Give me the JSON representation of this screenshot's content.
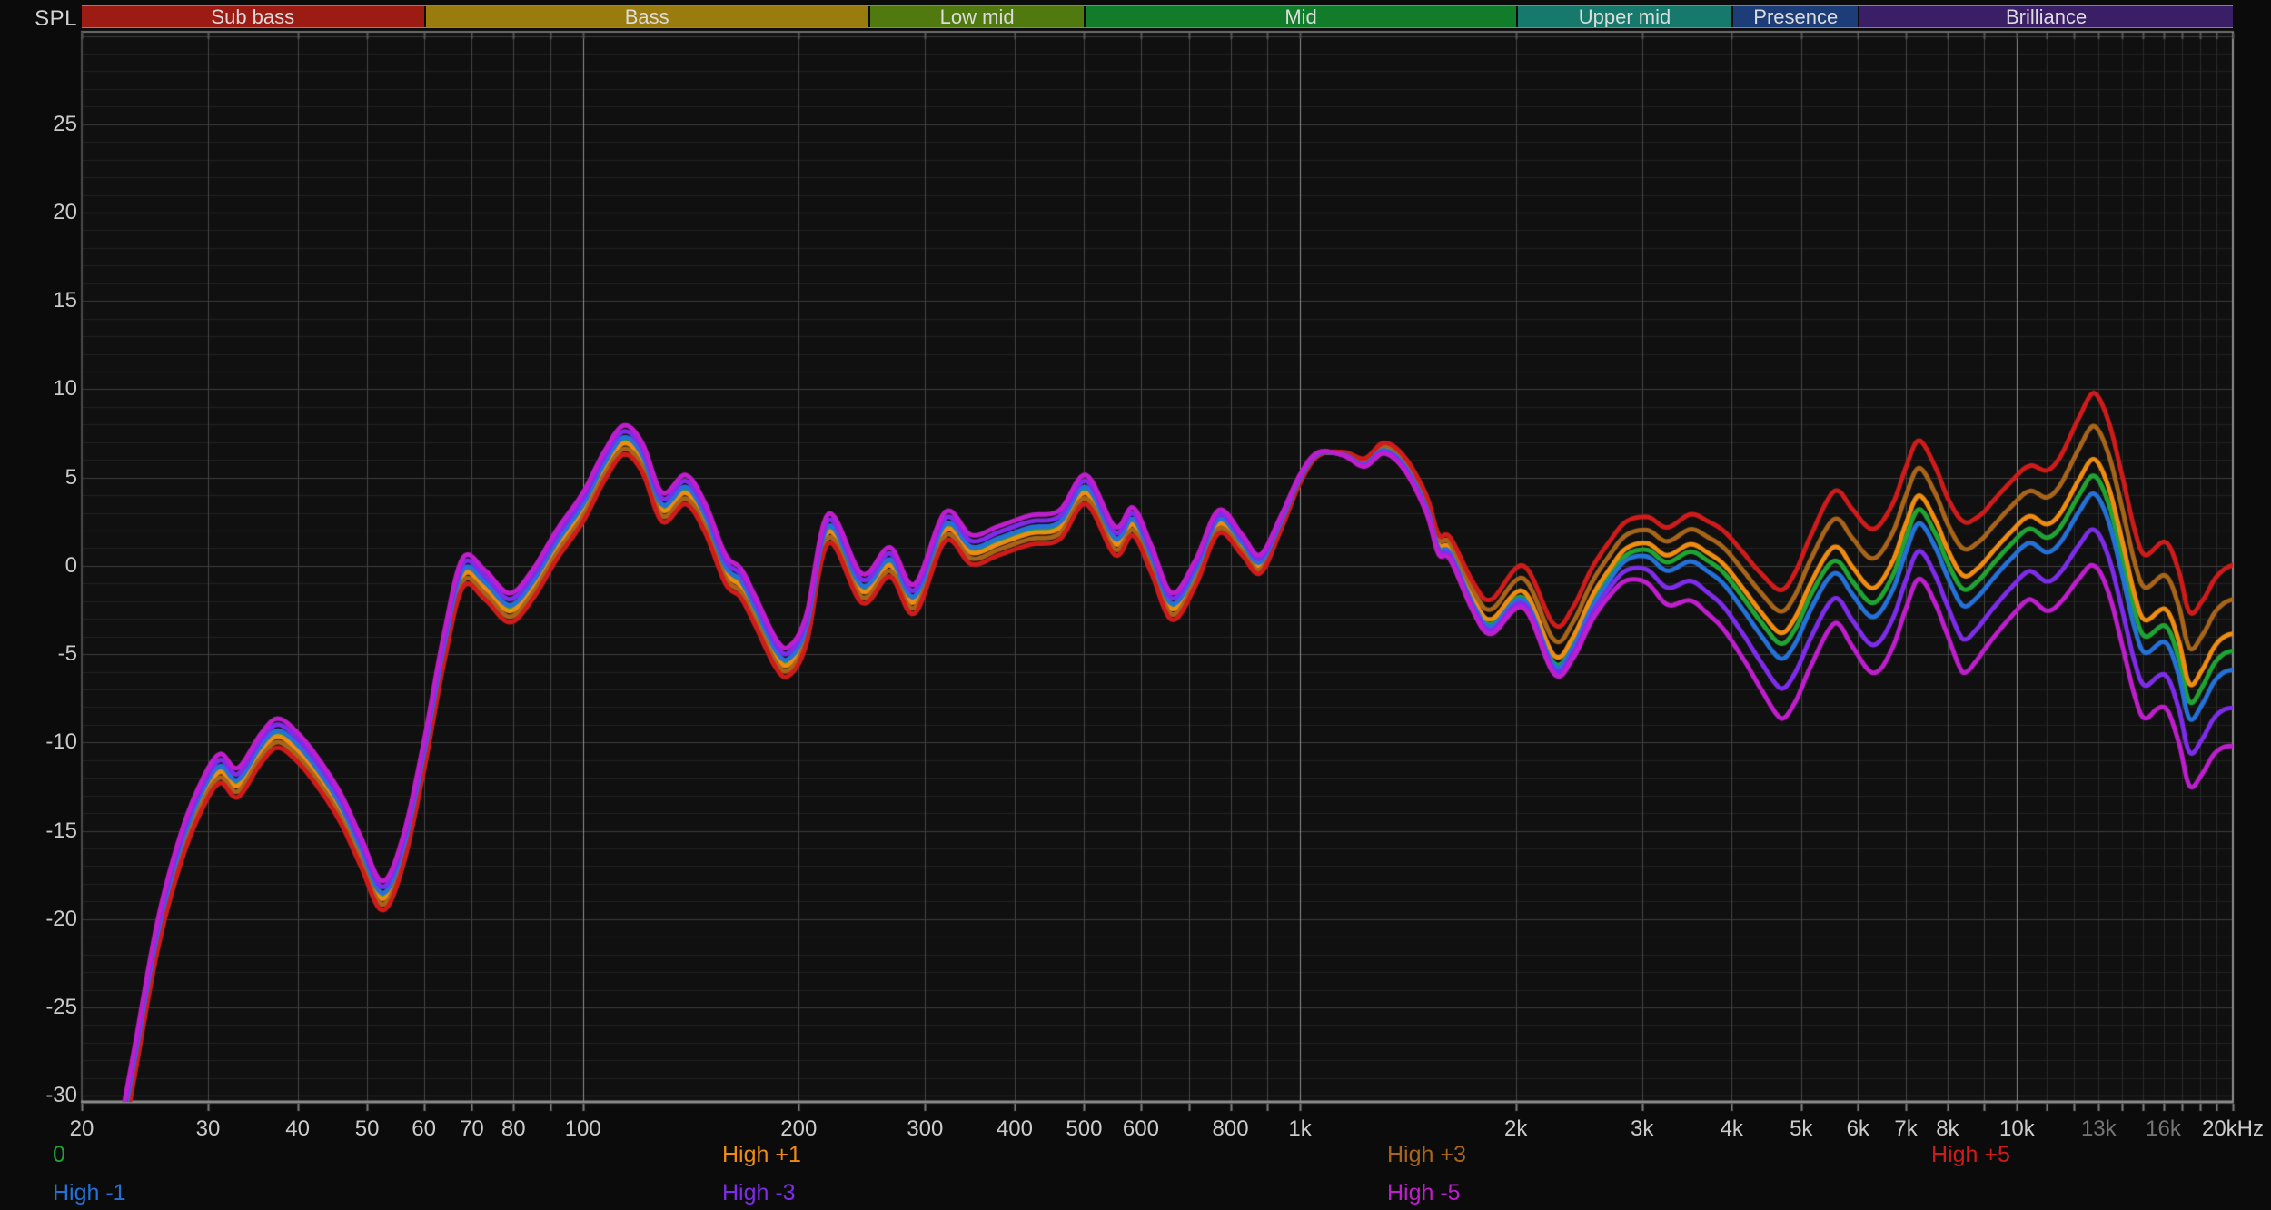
{
  "header": {
    "y_axis_title": "SPL"
  },
  "bands": [
    {
      "label": "Sub bass",
      "color": "#9c1b13",
      "f_start": 20,
      "f_end": 60
    },
    {
      "label": "Bass",
      "color": "#9a7b0e",
      "f_start": 60,
      "f_end": 250
    },
    {
      "label": "Low mid",
      "color": "#507a10",
      "f_start": 250,
      "f_end": 500
    },
    {
      "label": "Mid",
      "color": "#117c29",
      "f_start": 500,
      "f_end": 2000
    },
    {
      "label": "Upper mid",
      "color": "#17796b",
      "f_start": 2000,
      "f_end": 4000
    },
    {
      "label": "Presence",
      "color": "#1c3d78",
      "f_start": 4000,
      "f_end": 6000
    },
    {
      "label": "Brilliance",
      "color": "#3a1e66",
      "f_start": 6000,
      "f_end": 20000
    }
  ],
  "x_axis": {
    "min_f": 20,
    "max_f": 20000,
    "scale": "log",
    "ticks": [
      {
        "f": 20,
        "label": "20"
      },
      {
        "f": 30,
        "label": "30"
      },
      {
        "f": 40,
        "label": "40"
      },
      {
        "f": 50,
        "label": "50"
      },
      {
        "f": 60,
        "label": "60"
      },
      {
        "f": 70,
        "label": "70"
      },
      {
        "f": 80,
        "label": "80"
      },
      {
        "f": 100,
        "label": "100"
      },
      {
        "f": 200,
        "label": "200"
      },
      {
        "f": 300,
        "label": "300"
      },
      {
        "f": 400,
        "label": "400"
      },
      {
        "f": 500,
        "label": "500"
      },
      {
        "f": 600,
        "label": "600"
      },
      {
        "f": 800,
        "label": "800"
      },
      {
        "f": 1000,
        "label": "1k"
      },
      {
        "f": 2000,
        "label": "2k"
      },
      {
        "f": 3000,
        "label": "3k"
      },
      {
        "f": 4000,
        "label": "4k"
      },
      {
        "f": 5000,
        "label": "5k"
      },
      {
        "f": 6000,
        "label": "6k"
      },
      {
        "f": 7000,
        "label": "7k"
      },
      {
        "f": 8000,
        "label": "8k"
      },
      {
        "f": 10000,
        "label": "10k"
      },
      {
        "f": 13000,
        "label": "13k",
        "dim": true
      },
      {
        "f": 16000,
        "label": "16k",
        "dim": true
      },
      {
        "f": 20000,
        "label": "20kHz"
      }
    ],
    "unit_lines": [
      30,
      40,
      50,
      60,
      70,
      80,
      90,
      200,
      300,
      400,
      500,
      600,
      700,
      800,
      900,
      2000,
      3000,
      4000,
      5000,
      6000,
      7000,
      8000,
      9000
    ],
    "dim_lines": [
      11000,
      12000,
      13000,
      14000,
      15000,
      16000,
      17000,
      18000,
      19000
    ],
    "decade_lines": [
      100,
      1000,
      10000
    ]
  },
  "y_axis": {
    "title": "SPL",
    "unit": "dB",
    "min": -30,
    "max": 30,
    "tick_values": [
      25,
      20,
      15,
      10,
      5,
      0,
      -5,
      -10,
      -15,
      -20,
      -25,
      -30
    ],
    "minor_step": 1,
    "major_step": 5
  },
  "legend": {
    "row1": [
      {
        "label": "0",
        "color": "#1fa433"
      },
      {
        "label": "High +1",
        "color": "#ef8c12"
      },
      {
        "label": "High +3",
        "color": "#a8651a"
      },
      {
        "label": "High +5",
        "color": "#d01b1b"
      }
    ],
    "row2": [
      {
        "label": "High -1",
        "color": "#2471d8"
      },
      {
        "label": "High -3",
        "color": "#7e2cea"
      },
      {
        "label": "High -5",
        "color": "#bf1ecd"
      }
    ]
  },
  "chart_data": {
    "type": "line",
    "x_scale": "log",
    "x_range": [
      20,
      20000
    ],
    "y_range": [
      -30,
      30
    ],
    "x_unit": "Hz",
    "y_unit": "dB SPL",
    "description": "Headphone frequency response with high-shelf EQ variants 0, +/-1, +/-3, +/-5 dB",
    "base_curve_name": "0",
    "base_curve": [
      [
        21.8,
        -36
      ],
      [
        23.6,
        -28.5
      ],
      [
        25.5,
        -21
      ],
      [
        27.5,
        -16
      ],
      [
        29.5,
        -12.9
      ],
      [
        31.2,
        -11.5
      ],
      [
        33,
        -12.3
      ],
      [
        35.5,
        -10.4
      ],
      [
        37.5,
        -9.5
      ],
      [
        40,
        -10.3
      ],
      [
        43,
        -11.9
      ],
      [
        46,
        -13.8
      ],
      [
        49,
        -16.2
      ],
      [
        52.5,
        -18.7
      ],
      [
        56,
        -16.3
      ],
      [
        60,
        -10.8
      ],
      [
        64,
        -4.7
      ],
      [
        68,
        -0.4
      ],
      [
        73,
        -1.1
      ],
      [
        79,
        -2.4
      ],
      [
        85,
        -1.1
      ],
      [
        92,
        1.2
      ],
      [
        100,
        3.3
      ],
      [
        107,
        5.6
      ],
      [
        114,
        7.1
      ],
      [
        121,
        6.1
      ],
      [
        129,
        3.3
      ],
      [
        139,
        4.3
      ],
      [
        148,
        2.7
      ],
      [
        158,
        -0.2
      ],
      [
        166,
        -1.0
      ],
      [
        174,
        -2.6
      ],
      [
        186,
        -5.0
      ],
      [
        194,
        -5.4
      ],
      [
        205,
        -3.6
      ],
      [
        220,
        2.1
      ],
      [
        245,
        -1.3
      ],
      [
        268,
        0.2
      ],
      [
        290,
        -1.9
      ],
      [
        320,
        2.2
      ],
      [
        348,
        0.9
      ],
      [
        380,
        1.4
      ],
      [
        420,
        2.0
      ],
      [
        462,
        2.3
      ],
      [
        503,
        4.3
      ],
      [
        552,
        1.4
      ],
      [
        585,
        2.5
      ],
      [
        620,
        0.4
      ],
      [
        663,
        -2.3
      ],
      [
        715,
        -0.4
      ],
      [
        770,
        2.5
      ],
      [
        830,
        1.2
      ],
      [
        880,
        0.1
      ],
      [
        940,
        2.4
      ],
      [
        1000,
        4.9
      ],
      [
        1060,
        6.3
      ],
      [
        1150,
        6.3
      ],
      [
        1230,
        5.8
      ],
      [
        1310,
        6.6
      ],
      [
        1400,
        5.7
      ],
      [
        1500,
        3.4
      ],
      [
        1560,
        1.1
      ],
      [
        1620,
        0.8
      ],
      [
        1750,
        -2.2
      ],
      [
        1850,
        -3.3
      ],
      [
        2050,
        -1.8
      ],
      [
        2260,
        -5.5
      ],
      [
        2400,
        -4.5
      ],
      [
        2550,
        -2.2
      ],
      [
        2700,
        -0.6
      ],
      [
        2850,
        0.6
      ],
      [
        3050,
        0.9
      ],
      [
        3250,
        0.2
      ],
      [
        3500,
        0.8
      ],
      [
        3700,
        0.3
      ],
      [
        3900,
        -0.4
      ],
      [
        4150,
        -1.8
      ],
      [
        4400,
        -3.2
      ],
      [
        4680,
        -4.4
      ],
      [
        4900,
        -3.6
      ],
      [
        5150,
        -1.7
      ],
      [
        5450,
        0.0
      ],
      [
        5650,
        0.2
      ],
      [
        5900,
        -0.9
      ],
      [
        6300,
        -2.1
      ],
      [
        6700,
        -0.6
      ],
      [
        7000,
        1.6
      ],
      [
        7300,
        3.2
      ],
      [
        7700,
        1.8
      ],
      [
        8000,
        0.2
      ],
      [
        8400,
        -1.3
      ],
      [
        8800,
        -0.9
      ],
      [
        9300,
        0.2
      ],
      [
        9800,
        1.2
      ],
      [
        10400,
        2.1
      ],
      [
        11000,
        1.6
      ],
      [
        11500,
        2.2
      ],
      [
        12200,
        4.0
      ],
      [
        12800,
        5.1
      ],
      [
        13400,
        3.6
      ],
      [
        14000,
        0.6
      ],
      [
        14600,
        -2.6
      ],
      [
        15100,
        -4.0
      ],
      [
        16100,
        -3.4
      ],
      [
        16800,
        -5.2
      ],
      [
        17400,
        -7.7
      ],
      [
        18100,
        -6.9
      ],
      [
        18800,
        -5.6
      ],
      [
        19400,
        -5.0
      ],
      [
        20000,
        -4.8
      ]
    ],
    "series": [
      {
        "name": "0",
        "color": "#1fa433",
        "k": 0
      },
      {
        "name": "High +1",
        "color": "#ef8c12",
        "k": 1
      },
      {
        "name": "High +3",
        "color": "#a8651a",
        "k": 3
      },
      {
        "name": "High +5",
        "color": "#d01b1b",
        "k": 5
      },
      {
        "name": "High -1",
        "color": "#2471d8",
        "k": -1
      },
      {
        "name": "High -3",
        "color": "#7e2cea",
        "k": -3
      },
      {
        "name": "High -5",
        "color": "#bf1ecd",
        "k": -5
      }
    ],
    "shelf_weight_positive": [
      [
        20,
        -0.16
      ],
      [
        500,
        -0.16
      ],
      [
        700,
        -0.15
      ],
      [
        900,
        -0.1
      ],
      [
        1050,
        -0.02
      ],
      [
        1200,
        0.05
      ],
      [
        1400,
        0.09
      ],
      [
        1600,
        0.15
      ],
      [
        1850,
        0.28
      ],
      [
        2260,
        0.44
      ],
      [
        2600,
        0.4
      ],
      [
        3000,
        0.37
      ],
      [
        3400,
        0.41
      ],
      [
        3800,
        0.46
      ],
      [
        4300,
        0.53
      ],
      [
        4700,
        0.61
      ],
      [
        5200,
        0.68
      ],
      [
        5600,
        0.8
      ],
      [
        6300,
        0.84
      ],
      [
        7300,
        0.78
      ],
      [
        8000,
        0.73
      ],
      [
        8400,
        0.77
      ],
      [
        9000,
        0.71
      ],
      [
        10400,
        0.71
      ],
      [
        11500,
        0.8
      ],
      [
        12800,
        0.94
      ],
      [
        14000,
        0.92
      ],
      [
        15000,
        0.92
      ],
      [
        16100,
        0.95
      ],
      [
        17400,
        1.02
      ],
      [
        18500,
        0.95
      ],
      [
        19300,
        0.95
      ],
      [
        20000,
        0.97
      ]
    ],
    "shelf_weight_negative": [
      [
        20,
        -0.17
      ],
      [
        500,
        -0.17
      ],
      [
        700,
        -0.15
      ],
      [
        900,
        -0.1
      ],
      [
        1050,
        -0.03
      ],
      [
        1200,
        0.03
      ],
      [
        1400,
        0.06
      ],
      [
        1600,
        0.09
      ],
      [
        1850,
        0.11
      ],
      [
        2260,
        0.12
      ],
      [
        2700,
        0.22
      ],
      [
        3000,
        0.35
      ],
      [
        3300,
        0.5
      ],
      [
        3700,
        0.6
      ],
      [
        4200,
        0.7
      ],
      [
        4700,
        0.85
      ],
      [
        5200,
        0.8
      ],
      [
        5600,
        0.7
      ],
      [
        6000,
        0.75
      ],
      [
        6500,
        0.82
      ],
      [
        7000,
        0.8
      ],
      [
        7500,
        0.78
      ],
      [
        8000,
        0.82
      ],
      [
        8400,
        0.95
      ],
      [
        9000,
        0.85
      ],
      [
        10400,
        0.8
      ],
      [
        11500,
        0.85
      ],
      [
        12800,
        1.02
      ],
      [
        14000,
        1.0
      ],
      [
        14700,
        0.95
      ],
      [
        15600,
        0.9
      ],
      [
        16500,
        0.95
      ],
      [
        17400,
        0.95
      ],
      [
        18500,
        1.0
      ],
      [
        19300,
        1.05
      ],
      [
        20000,
        1.08
      ]
    ]
  }
}
